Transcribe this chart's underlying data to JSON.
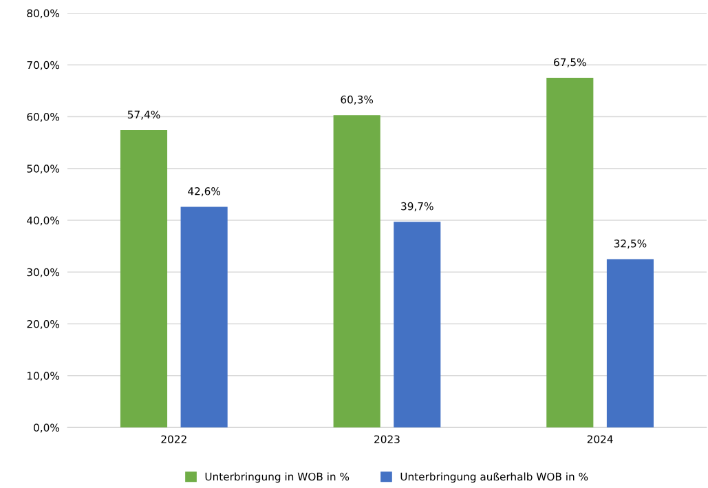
{
  "chart_data": {
    "type": "bar",
    "categories": [
      "2022",
      "2023",
      "2024"
    ],
    "series": [
      {
        "name": "Unterbringung in WOB in %",
        "color": "#70ad47",
        "values": [
          57.4,
          60.3,
          67.5
        ],
        "value_labels": [
          "57,4%",
          "60,3%",
          "67,5%"
        ]
      },
      {
        "name": "Unterbringung außerhalb WOB in %",
        "color": "#4472c4",
        "values": [
          42.6,
          39.7,
          32.5
        ],
        "value_labels": [
          "42,6%",
          "39,7%",
          "32,5%"
        ]
      }
    ],
    "ylim": [
      0,
      80
    ],
    "yticks": [
      {
        "value": 0,
        "label": "0,0%"
      },
      {
        "value": 10,
        "label": "10,0%"
      },
      {
        "value": 20,
        "label": "20,0%"
      },
      {
        "value": 30,
        "label": "30,0%"
      },
      {
        "value": 40,
        "label": "40,0%"
      },
      {
        "value": 50,
        "label": "50,0%"
      },
      {
        "value": 60,
        "label": "60,0%"
      },
      {
        "value": 70,
        "label": "70,0%"
      },
      {
        "value": 80,
        "label": "80,0%"
      }
    ],
    "grid": "y",
    "legend": "bottom"
  }
}
